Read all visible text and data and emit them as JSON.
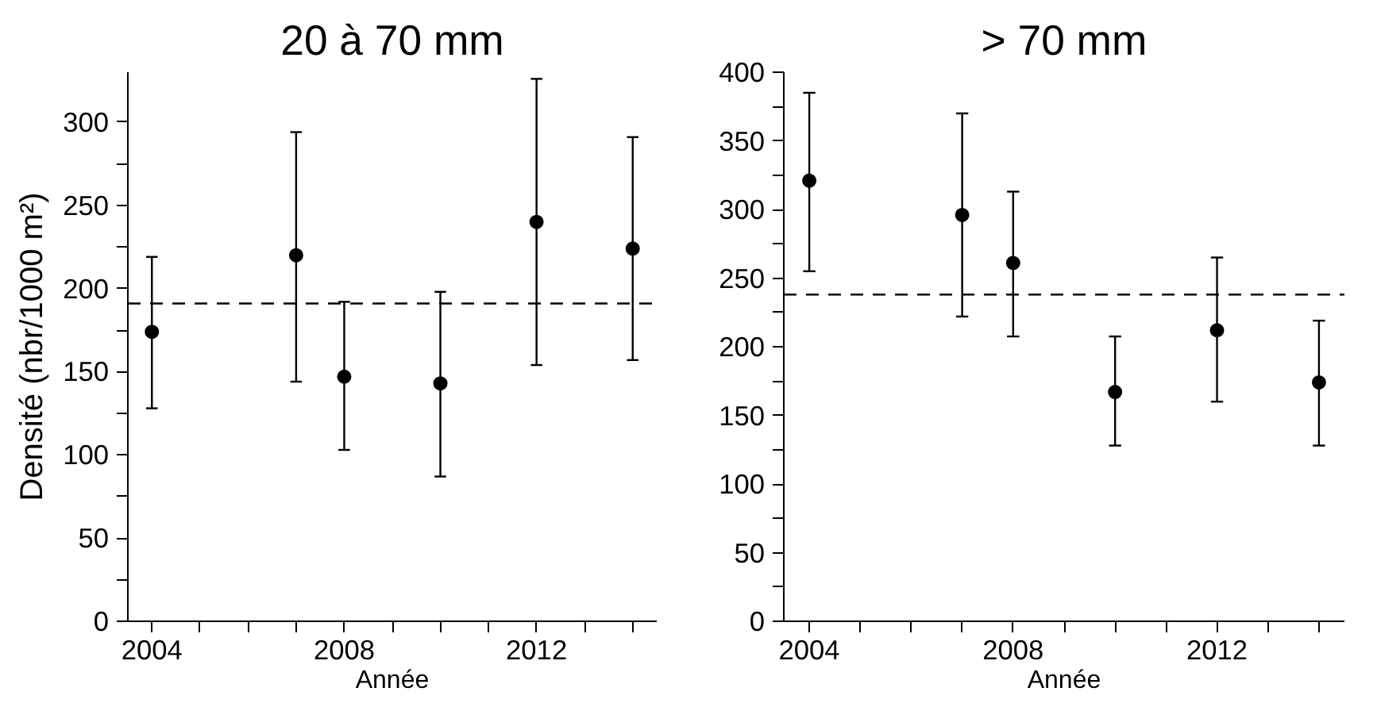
{
  "chart_data": [
    {
      "type": "scatter",
      "title": "20 à 70 mm",
      "xlabel": "Année",
      "ylabel": "Densité (nbr/1000 m²)",
      "x": [
        2004,
        2007,
        2008,
        2010,
        2012,
        2014
      ],
      "series": [
        {
          "color": "#000000",
          "values": [
            174,
            220,
            147,
            143,
            240,
            224
          ],
          "errors": [
            [
              128,
              219
            ],
            [
              144,
              294
            ],
            [
              103,
              192
            ],
            [
              87,
              198
            ],
            [
              154,
              326
            ],
            [
              157,
              291
            ]
          ]
        }
      ],
      "marker": "circle",
      "grid": false,
      "xlim": [
        2003.5,
        2014.5
      ],
      "xticks": [
        2004,
        {
          "value": 2005,
          "label": null
        },
        {
          "value": 2006,
          "label": null
        },
        {
          "value": 2007,
          "label": null
        },
        2008,
        {
          "value": 2009,
          "label": null
        },
        {
          "value": 2010,
          "label": null
        },
        {
          "value": 2011,
          "label": null
        },
        2012,
        {
          "value": 2013,
          "label": null
        },
        {
          "value": 2014,
          "label": null
        }
      ],
      "ylim": [
        0,
        330
      ],
      "yticks": [
        0,
        {
          "value": 25,
          "label": null
        },
        50,
        {
          "value": 75,
          "label": null
        },
        100,
        {
          "value": 125,
          "label": null
        },
        150,
        {
          "value": 175,
          "label": null
        },
        200,
        {
          "value": 225,
          "label": null
        },
        250,
        {
          "value": 275,
          "label": null
        },
        300
      ],
      "ref_lines": [
        {
          "axis": "y",
          "value": 191,
          "label": null,
          "color": "#000000",
          "line_style": "dashed"
        }
      ]
    },
    {
      "type": "scatter",
      "title": "> 70 mm",
      "xlabel": "Année",
      "x": [
        2004,
        2007,
        2008,
        2010,
        2012,
        2014
      ],
      "series": [
        {
          "color": "#000000",
          "values": [
            321,
            296,
            261,
            167,
            212,
            174
          ],
          "errors": [
            [
              255,
              385
            ],
            [
              222,
              370
            ],
            [
              207.5,
              313
            ],
            [
              128,
              207.5
            ],
            [
              160,
              265
            ],
            [
              128,
              219
            ]
          ]
        }
      ],
      "marker": "circle",
      "grid": false,
      "xlim": [
        2003.5,
        2014.5
      ],
      "xticks": [
        2004,
        {
          "value": 2005,
          "label": null
        },
        {
          "value": 2006,
          "label": null
        },
        {
          "value": 2007,
          "label": null
        },
        2008,
        {
          "value": 2009,
          "label": null
        },
        {
          "value": 2010,
          "label": null
        },
        {
          "value": 2011,
          "label": null
        },
        2012,
        {
          "value": 2013,
          "label": null
        },
        {
          "value": 2014,
          "label": null
        }
      ],
      "ylim": [
        0,
        400
      ],
      "yticks": [
        0,
        {
          "value": 25,
          "label": null
        },
        50,
        {
          "value": 75,
          "label": null
        },
        100,
        {
          "value": 125,
          "label": null
        },
        150,
        {
          "value": 175,
          "label": null
        },
        200,
        {
          "value": 225,
          "label": null
        },
        250,
        {
          "value": 275,
          "label": null
        },
        300,
        {
          "value": 325,
          "label": null
        },
        350,
        {
          "value": 375,
          "label": null
        },
        400
      ],
      "ref_lines": [
        {
          "axis": "y",
          "value": 238,
          "label": null,
          "color": "#000000",
          "line_style": "dashed"
        }
      ]
    }
  ]
}
